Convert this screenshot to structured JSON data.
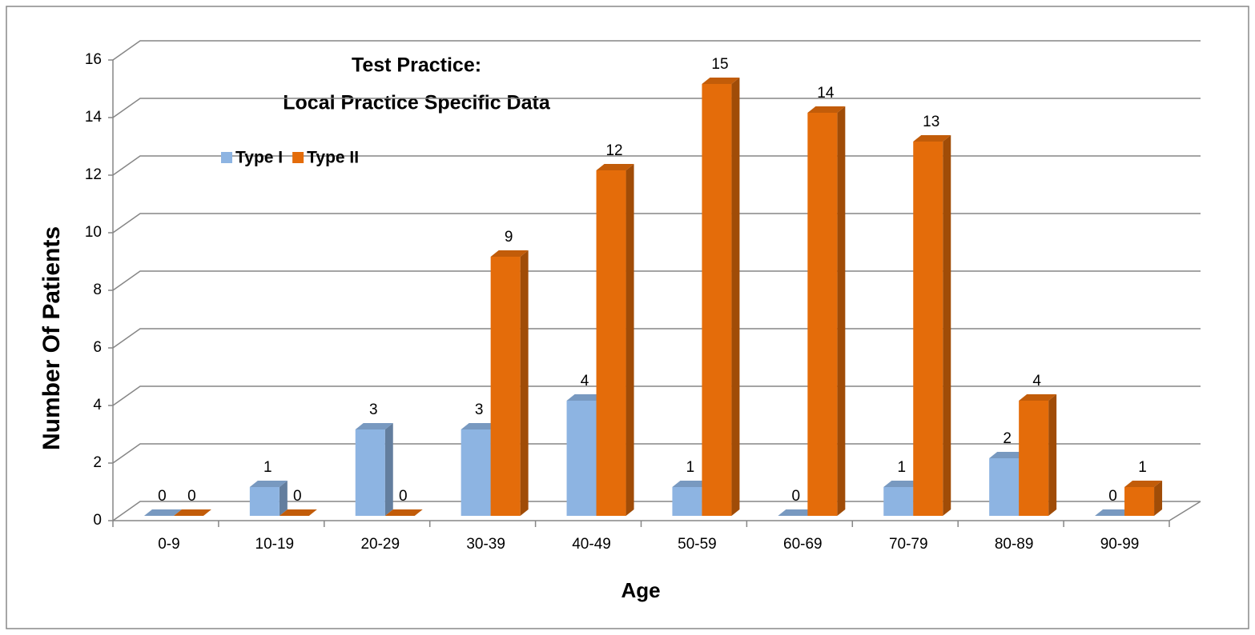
{
  "chart_data": {
    "type": "bar3d",
    "title": "Test Practice:",
    "subtitle": "Local Practice Specific Data",
    "x_label": "Age",
    "y_label": "Number Of Patients",
    "categories": [
      "0-9",
      "10-19",
      "20-29",
      "30-39",
      "40-49",
      "50-59",
      "60-69",
      "70-79",
      "80-89",
      "90-99"
    ],
    "series": [
      {
        "name": "Type I",
        "color": "#8db4e2",
        "values": [
          0,
          1,
          3,
          3,
          4,
          1,
          0,
          1,
          2,
          0
        ]
      },
      {
        "name": "Type II",
        "color": "#e46c0a",
        "values": [
          0,
          0,
          0,
          9,
          12,
          15,
          14,
          13,
          4,
          1
        ]
      }
    ],
    "ylim": [
      0,
      16
    ],
    "yticks": [
      0,
      2,
      4,
      6,
      8,
      10,
      12,
      14,
      16
    ],
    "grid": true,
    "legend": "top-left"
  }
}
